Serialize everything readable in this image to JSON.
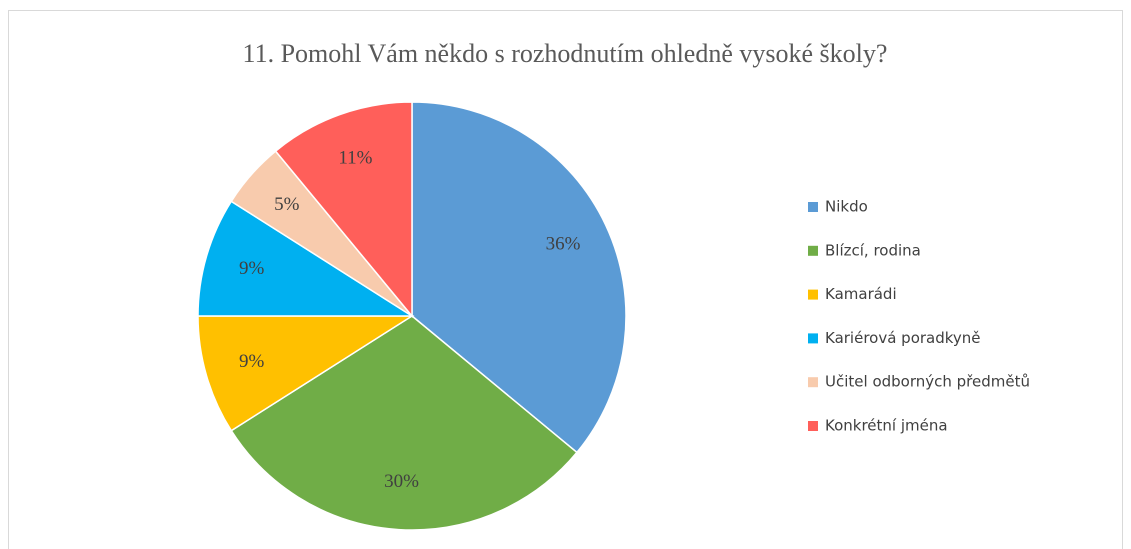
{
  "chart_data": {
    "type": "pie",
    "title": "11. Pomohl Vám někdo s rozhodnutím ohledně vysoké školy?",
    "categories": [
      "Nikdo",
      "Blízcí, rodina",
      "Kamarádi",
      "Kariérová poradkyně",
      "Učitel odborných předmětů",
      "Konkrétní jména"
    ],
    "values": [
      36,
      30,
      9,
      9,
      5,
      11
    ],
    "value_labels": [
      "36%",
      "30%",
      "9%",
      "9%",
      "5%",
      "11%"
    ],
    "colors": [
      "#5b9bd5",
      "#70ad47",
      "#ffc000",
      "#00b0f0",
      "#f8cbad",
      "#ff5f5a"
    ],
    "legend": "right"
  }
}
